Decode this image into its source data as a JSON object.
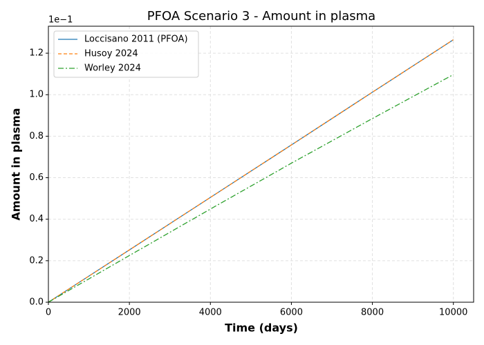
{
  "chart_data": {
    "type": "line",
    "title": "PFOA Scenario 3 - Amount in plasma",
    "xlabel": "Time (days)",
    "ylabel": "Amount in plasma",
    "y_offset_label": "1e−1",
    "x": [
      0,
      2000,
      4000,
      6000,
      8000,
      10000
    ],
    "series": [
      {
        "name": "Loccisano 2011 (PFOA)",
        "color": "#1f77b4",
        "dash": "solid",
        "values": [
          0,
          0.252,
          0.505,
          0.758,
          1.012,
          1.265
        ]
      },
      {
        "name": "Husoy 2024",
        "color": "#ff7f0e",
        "dash": "dashed",
        "values": [
          0,
          0.252,
          0.505,
          0.758,
          1.012,
          1.265
        ]
      },
      {
        "name": "Worley 2024",
        "color": "#2ca02c",
        "dash": "dashdot",
        "values": [
          0,
          0.225,
          0.449,
          0.67,
          0.885,
          1.097
        ]
      }
    ],
    "xlim": [
      0,
      10500
    ],
    "xticks": [
      0,
      2000,
      4000,
      6000,
      8000,
      10000
    ],
    "ylim": [
      0,
      1.33
    ],
    "yticks": [
      {
        "value": 0,
        "label": "0.0"
      },
      0.2,
      0.4,
      0.6,
      0.8,
      {
        "value": 1,
        "label": "1.0"
      },
      1.2
    ],
    "grid": true,
    "legend": "upper left"
  }
}
